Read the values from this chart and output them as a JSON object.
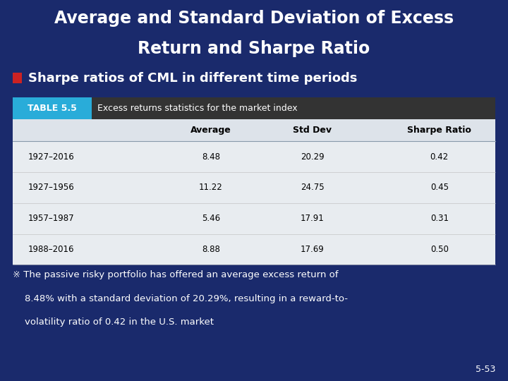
{
  "title_line1": "Average and Standard Deviation of Excess",
  "title_line2": "Return and Sharpe Ratio",
  "subtitle": "Sharpe ratios of CML in different time periods",
  "table_label": "TABLE 5.5",
  "table_desc": "Excess returns statistics for the market index",
  "col_headers": [
    "",
    "Average",
    "Std Dev",
    "Sharpe Ratio"
  ],
  "rows": [
    [
      "1927–2016",
      "8.48",
      "20.29",
      "0.42"
    ],
    [
      "1927–1956",
      "11.22",
      "24.75",
      "0.45"
    ],
    [
      "1957–1987",
      "5.46",
      "17.91",
      "0.31"
    ],
    [
      "1988–2016",
      "8.88",
      "17.69",
      "0.50"
    ]
  ],
  "footnote_line1": "※ The passive risky portfolio has offered an average excess return of",
  "footnote_line2": "    8.48% with a standard deviation of 20.29%, resulting in a reward-to-",
  "footnote_line3": "    volatility ratio of 0.42 in the U.S. market",
  "slide_number": "5-53",
  "bg_color": "#1a2a6c",
  "title_color": "#ffffff",
  "subtitle_color": "#ffffff",
  "table_header_bg": "#29acd9",
  "table_header_text": "#ffffff",
  "table_desc_bg": "#333333",
  "table_desc_text": "#ffffff",
  "table_col_header_bg": "#dde3ea",
  "table_col_header_text": "#000000",
  "table_row_bg": "#e8ecf0",
  "table_row_text": "#000000",
  "footnote_color": "#ffffff",
  "slide_num_color": "#ffffff",
  "bullet_color": "#cc2222",
  "title_fontsize": 17,
  "subtitle_fontsize": 13,
  "table_header_fontsize": 9,
  "col_header_fontsize": 9,
  "row_fontsize": 8.5,
  "footnote_fontsize": 9.5,
  "slide_num_fontsize": 9
}
